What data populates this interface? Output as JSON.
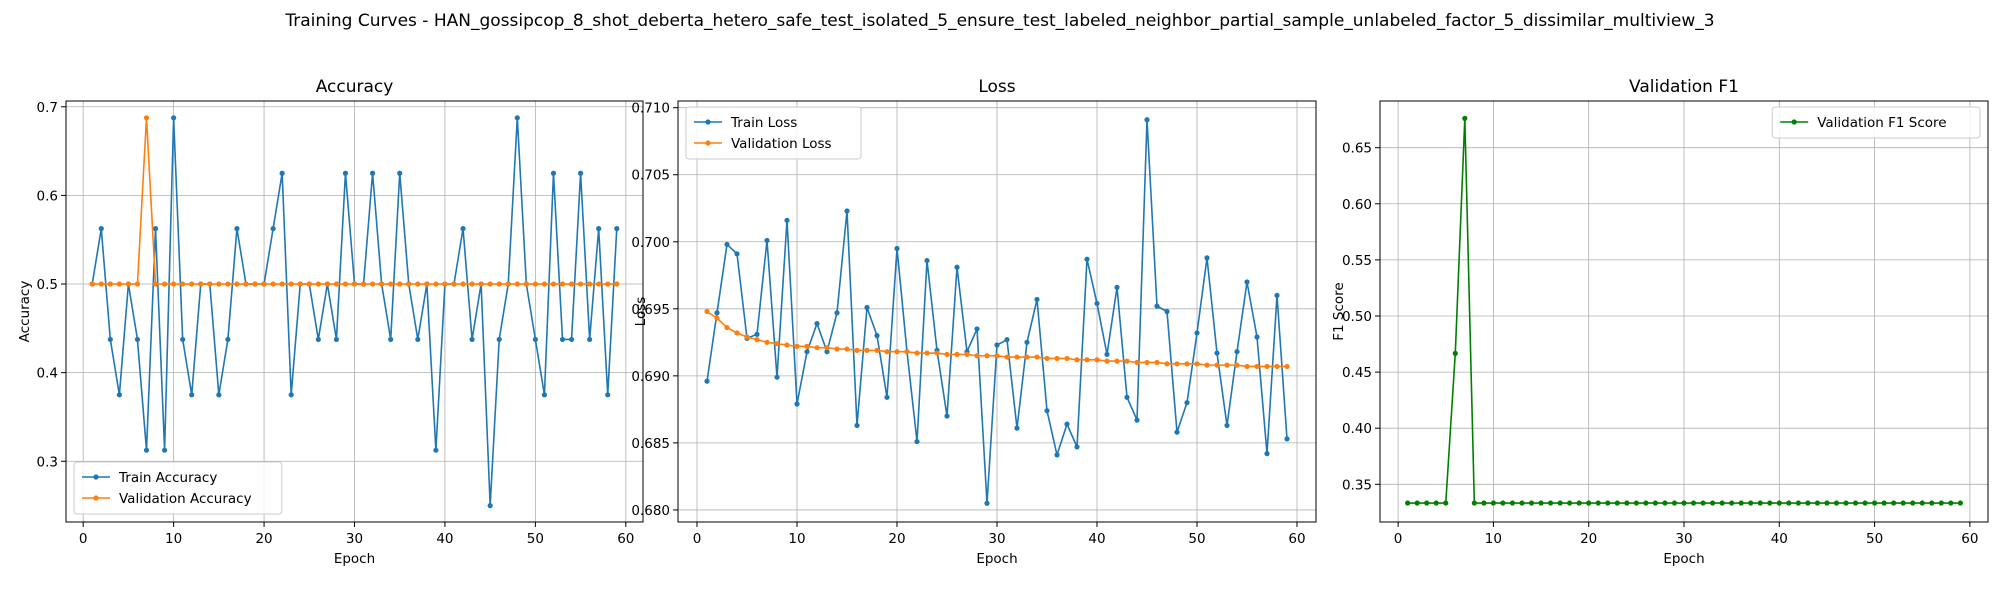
{
  "suptitle": "Training Curves - HAN_gossipcop_8_shot_deberta_hetero_safe_test_isolated_5_ensure_test_labeled_neighbor_partial_sample_unlabeled_factor_5_dissimilar_multiview_3",
  "colors": {
    "train": "#1f77b4",
    "val": "#ff7f0e",
    "f1": "#008000"
  },
  "chart_data": [
    {
      "type": "line",
      "title": "Accuracy",
      "xlabel": "Epoch",
      "ylabel": "Accuracy",
      "xlim": [
        -1.9,
        61.9
      ],
      "ylim": [
        0.2315,
        0.7065
      ],
      "xticks": [
        0,
        10,
        20,
        30,
        40,
        50,
        60
      ],
      "yticks": [
        0.3,
        0.4,
        0.5,
        0.6,
        0.7
      ],
      "ytick_labels": [
        "0.3",
        "0.4",
        "0.5",
        "0.6",
        "0.7"
      ],
      "legend_loc": "lower-left",
      "series": [
        {
          "name": "Train Accuracy",
          "color": "#1f77b4",
          "x": [
            1,
            2,
            3,
            4,
            5,
            6,
            7,
            8,
            9,
            10,
            11,
            12,
            13,
            14,
            15,
            16,
            17,
            18,
            19,
            20,
            21,
            22,
            23,
            24,
            25,
            26,
            27,
            28,
            29,
            30,
            31,
            32,
            33,
            34,
            35,
            36,
            37,
            38,
            39,
            40,
            41,
            42,
            43,
            44,
            45,
            46,
            47,
            48,
            49,
            50,
            51,
            52,
            53,
            54,
            55,
            56,
            57,
            58,
            59
          ],
          "values": [
            0.5,
            0.5625,
            0.4375,
            0.375,
            0.5,
            0.4375,
            0.3125,
            0.5625,
            0.3125,
            0.6875,
            0.4375,
            0.375,
            0.5,
            0.5,
            0.375,
            0.4375,
            0.5625,
            0.5,
            0.5,
            0.5,
            0.5625,
            0.625,
            0.375,
            0.5,
            0.5,
            0.4375,
            0.5,
            0.4375,
            0.625,
            0.5,
            0.5,
            0.625,
            0.5,
            0.4375,
            0.625,
            0.5,
            0.4375,
            0.5,
            0.3125,
            0.5,
            0.5,
            0.5625,
            0.4375,
            0.5,
            0.25,
            0.4375,
            0.5,
            0.6875,
            0.5,
            0.4375,
            0.375,
            0.625,
            0.4375,
            0.4375,
            0.625,
            0.4375,
            0.5625,
            0.375,
            0.5625
          ]
        },
        {
          "name": "Validation Accuracy",
          "color": "#ff7f0e",
          "x": [
            1,
            2,
            3,
            4,
            5,
            6,
            7,
            8,
            9,
            10,
            11,
            12,
            13,
            14,
            15,
            16,
            17,
            18,
            19,
            20,
            21,
            22,
            23,
            24,
            25,
            26,
            27,
            28,
            29,
            30,
            31,
            32,
            33,
            34,
            35,
            36,
            37,
            38,
            39,
            40,
            41,
            42,
            43,
            44,
            45,
            46,
            47,
            48,
            49,
            50,
            51,
            52,
            53,
            54,
            55,
            56,
            57,
            58,
            59
          ],
          "values": [
            0.5,
            0.5,
            0.5,
            0.5,
            0.5,
            0.5,
            0.6875,
            0.5,
            0.5,
            0.5,
            0.5,
            0.5,
            0.5,
            0.5,
            0.5,
            0.5,
            0.5,
            0.5,
            0.5,
            0.5,
            0.5,
            0.5,
            0.5,
            0.5,
            0.5,
            0.5,
            0.5,
            0.5,
            0.5,
            0.5,
            0.5,
            0.5,
            0.5,
            0.5,
            0.5,
            0.5,
            0.5,
            0.5,
            0.5,
            0.5,
            0.5,
            0.5,
            0.5,
            0.5,
            0.5,
            0.5,
            0.5,
            0.5,
            0.5,
            0.5,
            0.5,
            0.5,
            0.5,
            0.5,
            0.5,
            0.5,
            0.5,
            0.5,
            0.5
          ]
        }
      ]
    },
    {
      "type": "line",
      "title": "Loss",
      "xlabel": "Epoch",
      "ylabel": "Loss",
      "xlim": [
        -1.9,
        61.9
      ],
      "ylim": [
        0.6791,
        0.7105
      ],
      "xticks": [
        0,
        10,
        20,
        30,
        40,
        50,
        60
      ],
      "yticks": [
        0.68,
        0.685,
        0.69,
        0.695,
        0.7,
        0.705,
        0.71
      ],
      "ytick_labels": [
        "0.680",
        "0.685",
        "0.690",
        "0.695",
        "0.700",
        "0.705",
        "0.710"
      ],
      "legend_loc": "upper-left",
      "series": [
        {
          "name": "Train Loss",
          "color": "#1f77b4",
          "x": [
            1,
            2,
            3,
            4,
            5,
            6,
            7,
            8,
            9,
            10,
            11,
            12,
            13,
            14,
            15,
            16,
            17,
            18,
            19,
            20,
            21,
            22,
            23,
            24,
            25,
            26,
            27,
            28,
            29,
            30,
            31,
            32,
            33,
            34,
            35,
            36,
            37,
            38,
            39,
            40,
            41,
            42,
            43,
            44,
            45,
            46,
            47,
            48,
            49,
            50,
            51,
            52,
            53,
            54,
            55,
            56,
            57,
            58,
            59
          ],
          "values": [
            0.6896,
            0.6947,
            0.6998,
            0.6991,
            0.6928,
            0.6931,
            0.7001,
            0.6899,
            0.7016,
            0.6879,
            0.6918,
            0.6939,
            0.6918,
            0.6947,
            0.7023,
            0.6863,
            0.6951,
            0.693,
            0.6884,
            0.6995,
            0.6918,
            0.6851,
            0.6986,
            0.6919,
            0.687,
            0.6981,
            0.6918,
            0.6935,
            0.6805,
            0.6923,
            0.6927,
            0.6861,
            0.6925,
            0.6957,
            0.6874,
            0.6841,
            0.6864,
            0.6847,
            0.6987,
            0.6954,
            0.6916,
            0.6966,
            0.6884,
            0.6867,
            0.7091,
            0.6952,
            0.6948,
            0.6858,
            0.688,
            0.6932,
            0.6988,
            0.6917,
            0.6863,
            0.6918,
            0.697,
            0.6929,
            0.6842,
            0.696,
            0.6853
          ]
        },
        {
          "name": "Validation Loss",
          "color": "#ff7f0e",
          "x": [
            1,
            2,
            3,
            4,
            5,
            6,
            7,
            8,
            9,
            10,
            11,
            12,
            13,
            14,
            15,
            16,
            17,
            18,
            19,
            20,
            21,
            22,
            23,
            24,
            25,
            26,
            27,
            28,
            29,
            30,
            31,
            32,
            33,
            34,
            35,
            36,
            37,
            38,
            39,
            40,
            41,
            42,
            43,
            44,
            45,
            46,
            47,
            48,
            49,
            50,
            51,
            52,
            53,
            54,
            55,
            56,
            57,
            58,
            59
          ],
          "values": [
            0.6948,
            0.6943,
            0.6936,
            0.6932,
            0.6929,
            0.6927,
            0.6925,
            0.6924,
            0.6923,
            0.6922,
            0.6922,
            0.6921,
            0.6921,
            0.692,
            0.692,
            0.6919,
            0.6919,
            0.6919,
            0.6918,
            0.6918,
            0.6918,
            0.6917,
            0.6917,
            0.6917,
            0.6916,
            0.6916,
            0.6916,
            0.6915,
            0.6915,
            0.6915,
            0.6914,
            0.6914,
            0.6914,
            0.6914,
            0.6913,
            0.6913,
            0.6913,
            0.6912,
            0.6912,
            0.6912,
            0.6911,
            0.6911,
            0.6911,
            0.691,
            0.691,
            0.691,
            0.6909,
            0.6909,
            0.6909,
            0.6909,
            0.6908,
            0.6908,
            0.6908,
            0.6908,
            0.6907,
            0.6907,
            0.6907,
            0.6907,
            0.6907
          ]
        }
      ]
    },
    {
      "type": "line",
      "title": "Validation F1",
      "xlabel": "Epoch",
      "ylabel": "F1 Score",
      "xlim": [
        -1.9,
        61.9
      ],
      "ylim": [
        0.3164,
        0.6916
      ],
      "xticks": [
        0,
        10,
        20,
        30,
        40,
        50,
        60
      ],
      "yticks": [
        0.35,
        0.4,
        0.45,
        0.5,
        0.55,
        0.6,
        0.65
      ],
      "ytick_labels": [
        "0.35",
        "0.40",
        "0.45",
        "0.50",
        "0.55",
        "0.60",
        "0.65"
      ],
      "legend_loc": "upper-right",
      "series": [
        {
          "name": "Validation F1 Score",
          "color": "#008000",
          "x": [
            1,
            2,
            3,
            4,
            5,
            6,
            7,
            8,
            9,
            10,
            11,
            12,
            13,
            14,
            15,
            16,
            17,
            18,
            19,
            20,
            21,
            22,
            23,
            24,
            25,
            26,
            27,
            28,
            29,
            30,
            31,
            32,
            33,
            34,
            35,
            36,
            37,
            38,
            39,
            40,
            41,
            42,
            43,
            44,
            45,
            46,
            47,
            48,
            49,
            50,
            51,
            52,
            53,
            54,
            55,
            56,
            57,
            58,
            59
          ],
          "values": [
            0.3333,
            0.3333,
            0.3333,
            0.3333,
            0.3333,
            0.4667,
            0.6761,
            0.3333,
            0.3333,
            0.3333,
            0.3333,
            0.3333,
            0.3333,
            0.3333,
            0.3333,
            0.3333,
            0.3333,
            0.3333,
            0.3333,
            0.3333,
            0.3333,
            0.3333,
            0.3333,
            0.3333,
            0.3333,
            0.3333,
            0.3333,
            0.3333,
            0.3333,
            0.3333,
            0.3333,
            0.3333,
            0.3333,
            0.3333,
            0.3333,
            0.3333,
            0.3333,
            0.3333,
            0.3333,
            0.3333,
            0.3333,
            0.3333,
            0.3333,
            0.3333,
            0.3333,
            0.3333,
            0.3333,
            0.3333,
            0.3333,
            0.3333,
            0.3333,
            0.3333,
            0.3333,
            0.3333,
            0.3333,
            0.3333,
            0.3333,
            0.3333,
            0.3333
          ]
        }
      ]
    }
  ]
}
